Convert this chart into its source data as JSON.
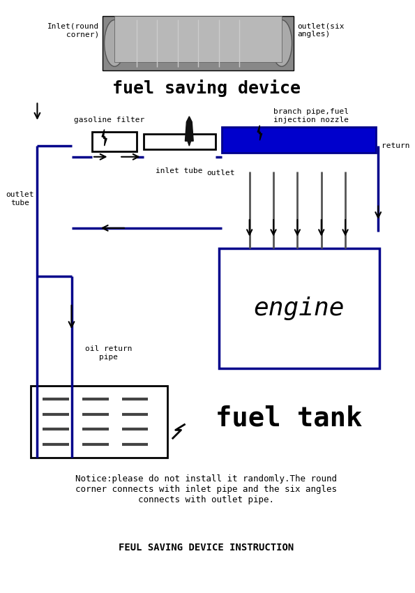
{
  "title": "fuel saving device",
  "bg_color": "#ffffff",
  "notice_text": "Notice:please do not install it randomly.The round\ncorner connects with inlet pipe and the six angles\nconnects with outlet pipe.",
  "footer_text": "FEUL SAVING DEVICE INSTRUCTION",
  "labels": {
    "inlet": "Inlet(round\ncorner)",
    "outlet_six": "outlet(six\nangles)",
    "gasoline_filter": "gasoline filter",
    "branch_pipe": "branch pipe,fuel\ninjection nozzle",
    "inlet_tube": "inlet tube",
    "outlet": "outlet",
    "return": "return",
    "outlet_tube": "outlet\ntube",
    "oil_return_pipe": "oil return\npipe",
    "engine": "engine",
    "fuel_tank": "fuel tank"
  }
}
